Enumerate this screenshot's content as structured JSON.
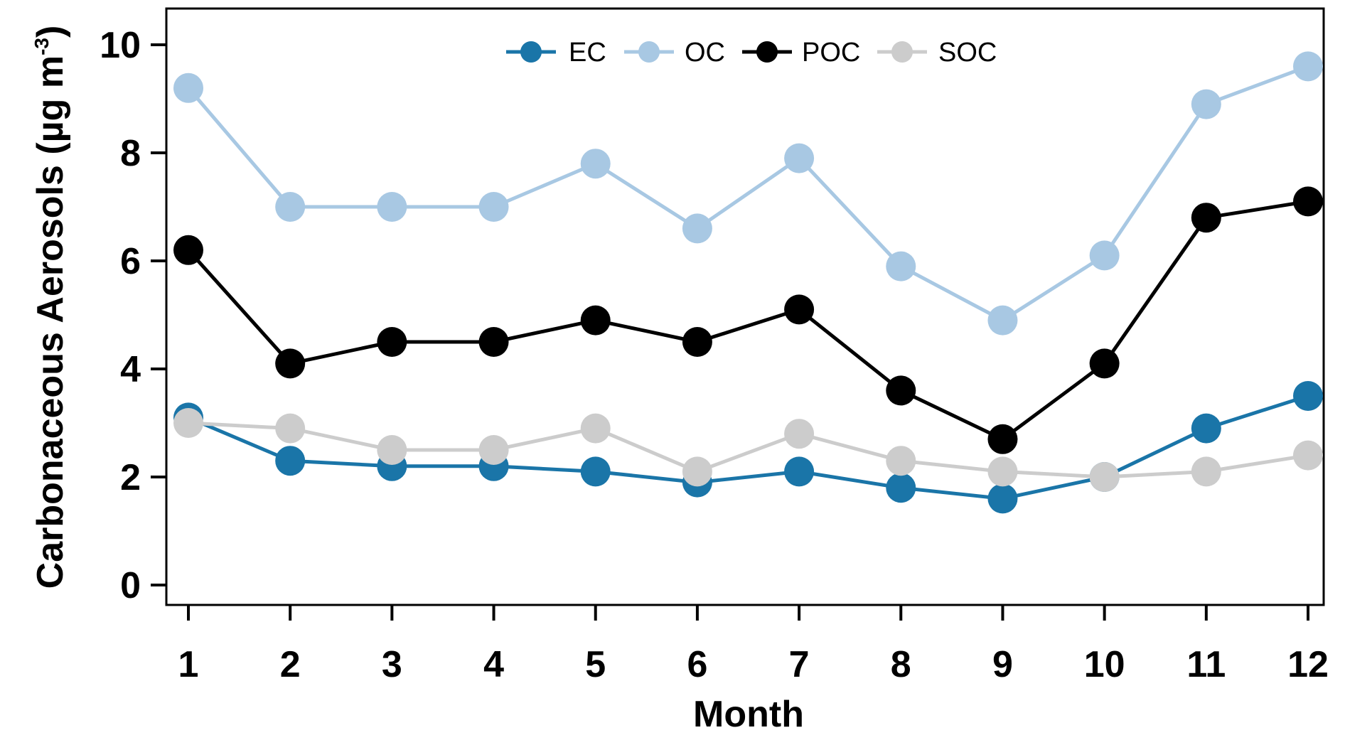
{
  "chart_data": {
    "type": "line",
    "xlabel": "Month",
    "ylabel": "Carbonaceous Aerosols",
    "ylabel_unit": "(µg m",
    "ylabel_exponent": "-3",
    "ylabel_close": ")",
    "x": [
      1,
      2,
      3,
      4,
      5,
      6,
      7,
      8,
      9,
      10,
      11,
      12
    ],
    "x_tick_labels": [
      "1",
      "2",
      "3",
      "4",
      "5",
      "6",
      "7",
      "8",
      "9",
      "10",
      "11",
      "12"
    ],
    "ylim": [
      0,
      10
    ],
    "y_ticks": [
      0,
      2,
      4,
      6,
      8,
      10
    ],
    "y_tick_labels": [
      "0",
      "2",
      "4",
      "6",
      "8",
      "10"
    ],
    "grid": false,
    "legend_position": "top-center",
    "series": [
      {
        "name": "EC",
        "color": "#1a75a8",
        "values": [
          3.1,
          2.3,
          2.2,
          2.2,
          2.1,
          1.9,
          2.1,
          1.8,
          1.6,
          2.0,
          2.9,
          3.5
        ]
      },
      {
        "name": "OC",
        "color": "#a8c8e3",
        "values": [
          9.2,
          7.0,
          7.0,
          7.0,
          7.8,
          6.6,
          7.9,
          5.9,
          4.9,
          6.1,
          8.9,
          9.6
        ]
      },
      {
        "name": "POC",
        "color": "#000000",
        "values": [
          6.2,
          4.1,
          4.5,
          4.5,
          4.9,
          4.5,
          5.1,
          3.6,
          2.7,
          4.1,
          6.8,
          7.1
        ]
      },
      {
        "name": "SOC",
        "color": "#cccccc",
        "values": [
          3.0,
          2.9,
          2.5,
          2.5,
          2.9,
          2.1,
          2.8,
          2.3,
          2.1,
          2.0,
          2.1,
          2.4
        ]
      }
    ]
  }
}
